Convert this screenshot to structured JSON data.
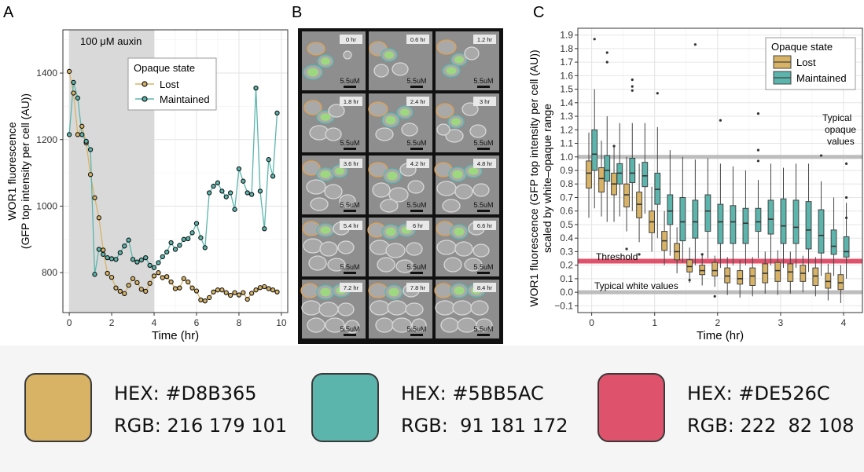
{
  "panels": {
    "A": {
      "letter": "A",
      "shade_label": "100 μM auxin",
      "xlabel": "Time (hr)",
      "ylabel_line1": "WOR1 fluorescence",
      "ylabel_line2": "(GFP top intensity per cell (AU))",
      "legend_title": "Opaque state",
      "legend_items": [
        "Lost",
        "Maintained"
      ],
      "x_ticks": [
        "0",
        "2",
        "4",
        "6",
        "8",
        "10"
      ],
      "y_ticks": [
        "800",
        "1000",
        "1200",
        "1400"
      ]
    },
    "B": {
      "letter": "B",
      "time_labels": [
        "0 hr",
        "0.6 hr",
        "1.2 hr",
        "1.8 hr",
        "2.4 hr",
        "3 hr",
        "3.6 hr",
        "4.2 hr",
        "4.8 hr",
        "5.4 hr",
        "6 hr",
        "6.6 hr",
        "7.2 hr",
        "7.8 hr",
        "8.4 hr"
      ],
      "scale_label": "5.5uM"
    },
    "C": {
      "letter": "C",
      "xlabel": "Time (hr)",
      "ylabel_line1": "WOR1 fluorescence (GFP top intensity per cell (AU))",
      "ylabel_line2": "scaled by white–opaque range",
      "legend_title": "Opaque state",
      "legend_items": [
        "Lost",
        "Maintained"
      ],
      "threshold_label": "Threshold",
      "opaque_label_lines": [
        "Typical",
        "opaque",
        "values"
      ],
      "white_label": "Typical white values",
      "x_ticks": [
        "0",
        "1",
        "2",
        "3",
        "4"
      ],
      "y_ticks": [
        "−0.1",
        "0.0",
        "0.1",
        "0.2",
        "0.3",
        "0.4",
        "0.5",
        "0.6",
        "0.7",
        "0.8",
        "0.9",
        "1.0",
        "1.1",
        "1.2",
        "1.3",
        "1.4",
        "1.5",
        "1.6",
        "1.7",
        "1.8",
        "1.9"
      ]
    }
  },
  "swatches": [
    {
      "hex_label": "HEX: #D8B365",
      "rgb_label": "RGB: 216 179 101",
      "color": "#D8B365"
    },
    {
      "hex_label": "HEX: #5BB5AC",
      "rgb_label": "RGB:  91 181 172",
      "color": "#5BB5AC"
    },
    {
      "hex_label": "HEX: #DE526C",
      "rgb_label": "RGB: 222  82 108",
      "color": "#DE526C"
    }
  ],
  "colors": {
    "lost": "#D8B365",
    "maintained": "#5BB5AC",
    "threshold": "#DE526C",
    "shade": "#d9d9d9"
  },
  "chart_data": [
    {
      "type": "line",
      "title": "",
      "xlabel": "Time (hr)",
      "ylabel": "WOR1 fluorescence (GFP top intensity per cell (AU))",
      "xlim": [
        -0.3,
        10.3
      ],
      "ylim": [
        680,
        1530
      ],
      "shaded_range": [
        0,
        4
      ],
      "series": [
        {
          "name": "Lost",
          "x": [
            0,
            0.2,
            0.4,
            0.6,
            0.8,
            1.0,
            1.2,
            1.4,
            1.6,
            1.8,
            2.0,
            2.2,
            2.4,
            2.6,
            2.8,
            3.0,
            3.2,
            3.4,
            3.6,
            3.8,
            4.0,
            4.2,
            4.4,
            4.6,
            4.8,
            5.0,
            5.2,
            5.4,
            5.6,
            5.8,
            6.0,
            6.2,
            6.4,
            6.6,
            6.8,
            7.0,
            7.2,
            7.4,
            7.6,
            7.8,
            8.0,
            8.2,
            8.4,
            8.6,
            8.8,
            9.0,
            9.2,
            9.4,
            9.6,
            9.8
          ],
          "y": [
            1405,
            1340,
            1215,
            1240,
            1190,
            1095,
            1025,
            965,
            868,
            798,
            786,
            754,
            744,
            737,
            762,
            782,
            770,
            750,
            744,
            768,
            790,
            800,
            785,
            788,
            772,
            752,
            754,
            782,
            772,
            754,
            745,
            718,
            715,
            725,
            742,
            748,
            748,
            740,
            732,
            740,
            733,
            740,
            720,
            738,
            748,
            755,
            758,
            752,
            748,
            742
          ]
        },
        {
          "name": "Maintained",
          "x": [
            0,
            0.2,
            0.4,
            0.6,
            0.8,
            1.0,
            1.2,
            1.4,
            1.6,
            1.8,
            2.0,
            2.2,
            2.4,
            2.6,
            2.8,
            3.0,
            3.2,
            3.4,
            3.6,
            3.8,
            4.0,
            4.2,
            4.4,
            4.6,
            4.8,
            5.0,
            5.2,
            5.4,
            5.6,
            5.8,
            6.0,
            6.2,
            6.4,
            6.6,
            6.8,
            7.0,
            7.2,
            7.4,
            7.6,
            7.8,
            8.0,
            8.2,
            8.4,
            8.6,
            8.8,
            9.0,
            9.2,
            9.4,
            9.6,
            9.8
          ],
          "y": [
            1215,
            1372,
            1325,
            1215,
            1195,
            1170,
            795,
            870,
            855,
            845,
            842,
            840,
            860,
            880,
            898,
            840,
            832,
            838,
            845,
            822,
            815,
            830,
            848,
            862,
            890,
            870,
            882,
            900,
            902,
            920,
            948,
            905,
            875,
            1040,
            1060,
            1070,
            1045,
            1028,
            1040,
            990,
            1112,
            1075,
            1040,
            1035,
            1355,
            1045,
            932,
            1140,
            1090,
            1280
          ]
        }
      ]
    },
    {
      "type": "boxplot",
      "title": "",
      "xlabel": "Time (hr)",
      "ylabel": "WOR1 fluorescence (GFP top intensity per cell (AU)) scaled by white–opaque range",
      "xlim": [
        -0.22,
        4.3
      ],
      "ylim": [
        -0.15,
        1.95
      ],
      "reference_lines": {
        "threshold": 0.23,
        "typical_opaque": 1.0,
        "typical_white": 0.0
      },
      "series": [
        {
          "name": "Lost",
          "x": [
            0,
            0.2,
            0.4,
            0.6,
            0.8,
            1.0,
            1.2,
            1.4,
            1.6,
            1.8,
            2.0,
            2.2,
            2.4,
            2.6,
            2.8,
            3.0,
            3.2,
            3.4,
            3.6,
            3.8,
            4.0
          ],
          "q1": [
            0.77,
            0.74,
            0.72,
            0.63,
            0.55,
            0.44,
            0.31,
            0.24,
            0.15,
            0.13,
            0.12,
            0.07,
            0.06,
            0.05,
            0.07,
            0.08,
            0.08,
            0.08,
            0.05,
            0.03,
            0.02
          ],
          "median": [
            0.88,
            0.84,
            0.8,
            0.72,
            0.65,
            0.52,
            0.38,
            0.3,
            0.19,
            0.16,
            0.16,
            0.12,
            0.1,
            0.12,
            0.14,
            0.16,
            0.15,
            0.14,
            0.12,
            0.08,
            0.07
          ],
          "q3": [
            0.97,
            0.92,
            0.88,
            0.8,
            0.74,
            0.6,
            0.45,
            0.36,
            0.24,
            0.2,
            0.22,
            0.18,
            0.16,
            0.18,
            0.21,
            0.22,
            0.21,
            0.2,
            0.18,
            0.14,
            0.13
          ],
          "whisker_low": [
            0.55,
            0.56,
            0.52,
            0.45,
            0.37,
            0.3,
            0.2,
            0.14,
            0.07,
            0.05,
            0.04,
            -0.02,
            -0.04,
            -0.03,
            -0.01,
            -0.02,
            -0.01,
            0.0,
            -0.03,
            -0.06,
            -0.08
          ],
          "whisker_high": [
            1.18,
            1.12,
            1.08,
            1.0,
            0.95,
            0.78,
            0.6,
            0.48,
            0.33,
            0.28,
            0.27,
            0.26,
            0.24,
            0.26,
            0.3,
            0.31,
            0.3,
            0.27,
            0.26,
            0.21,
            0.2
          ]
        },
        {
          "name": "Maintained",
          "x": [
            0,
            0.2,
            0.4,
            0.6,
            0.8,
            1.0,
            1.2,
            1.4,
            1.6,
            1.8,
            2.0,
            2.2,
            2.4,
            2.6,
            2.8,
            3.0,
            3.2,
            3.4,
            3.6,
            3.8,
            4.0
          ],
          "q1": [
            0.9,
            0.82,
            0.8,
            0.81,
            0.78,
            0.65,
            0.5,
            0.38,
            0.4,
            0.45,
            0.36,
            0.36,
            0.36,
            0.45,
            0.43,
            0.36,
            0.36,
            0.32,
            0.29,
            0.28,
            0.26
          ],
          "median": [
            1.02,
            0.9,
            0.88,
            0.88,
            0.86,
            0.76,
            0.6,
            0.52,
            0.52,
            0.6,
            0.52,
            0.52,
            0.51,
            0.52,
            0.54,
            0.49,
            0.48,
            0.46,
            0.42,
            0.34,
            0.3
          ],
          "q3": [
            1.2,
            1.01,
            0.95,
            0.99,
            0.96,
            0.88,
            0.72,
            0.7,
            0.68,
            0.72,
            0.65,
            0.64,
            0.62,
            0.62,
            0.68,
            0.69,
            0.68,
            0.67,
            0.61,
            0.46,
            0.41
          ],
          "whisker_low": [
            0.62,
            0.52,
            0.56,
            0.6,
            0.58,
            0.4,
            0.27,
            0.22,
            0.2,
            0.25,
            0.18,
            0.2,
            0.2,
            0.25,
            0.2,
            0.18,
            0.18,
            0.15,
            0.12,
            0.12,
            0.1
          ],
          "whisker_high": [
            1.5,
            1.3,
            1.25,
            1.25,
            1.25,
            1.22,
            1.05,
            1.0,
            0.98,
            0.99,
            0.95,
            0.93,
            0.9,
            0.83,
            0.95,
            0.92,
            0.95,
            0.95,
            0.82,
            0.7,
            0.66
          ]
        }
      ],
      "outliers": {
        "Lost": [
          [
            0.4,
            1.08
          ],
          [
            0.6,
            0.32
          ],
          [
            0.8,
            0.28
          ],
          [
            1.6,
            0.09
          ],
          [
            1.8,
            0.28
          ],
          [
            2.0,
            -0.03
          ]
        ],
        "Maintained": [
          [
            0.0,
            1.87
          ],
          [
            0.2,
            1.7
          ],
          [
            0.2,
            1.77
          ],
          [
            0.6,
            1.49
          ],
          [
            0.6,
            1.52
          ],
          [
            0.6,
            1.57
          ],
          [
            1.0,
            1.47
          ],
          [
            1.6,
            1.83
          ],
          [
            2.0,
            1.27
          ],
          [
            2.6,
            1.05
          ],
          [
            2.6,
            1.32
          ],
          [
            2.6,
            0.97
          ],
          [
            3.6,
            1.01
          ],
          [
            4.0,
            0.95
          ],
          [
            4.0,
            0.7
          ],
          [
            4.0,
            0.55
          ]
        ]
      }
    }
  ]
}
